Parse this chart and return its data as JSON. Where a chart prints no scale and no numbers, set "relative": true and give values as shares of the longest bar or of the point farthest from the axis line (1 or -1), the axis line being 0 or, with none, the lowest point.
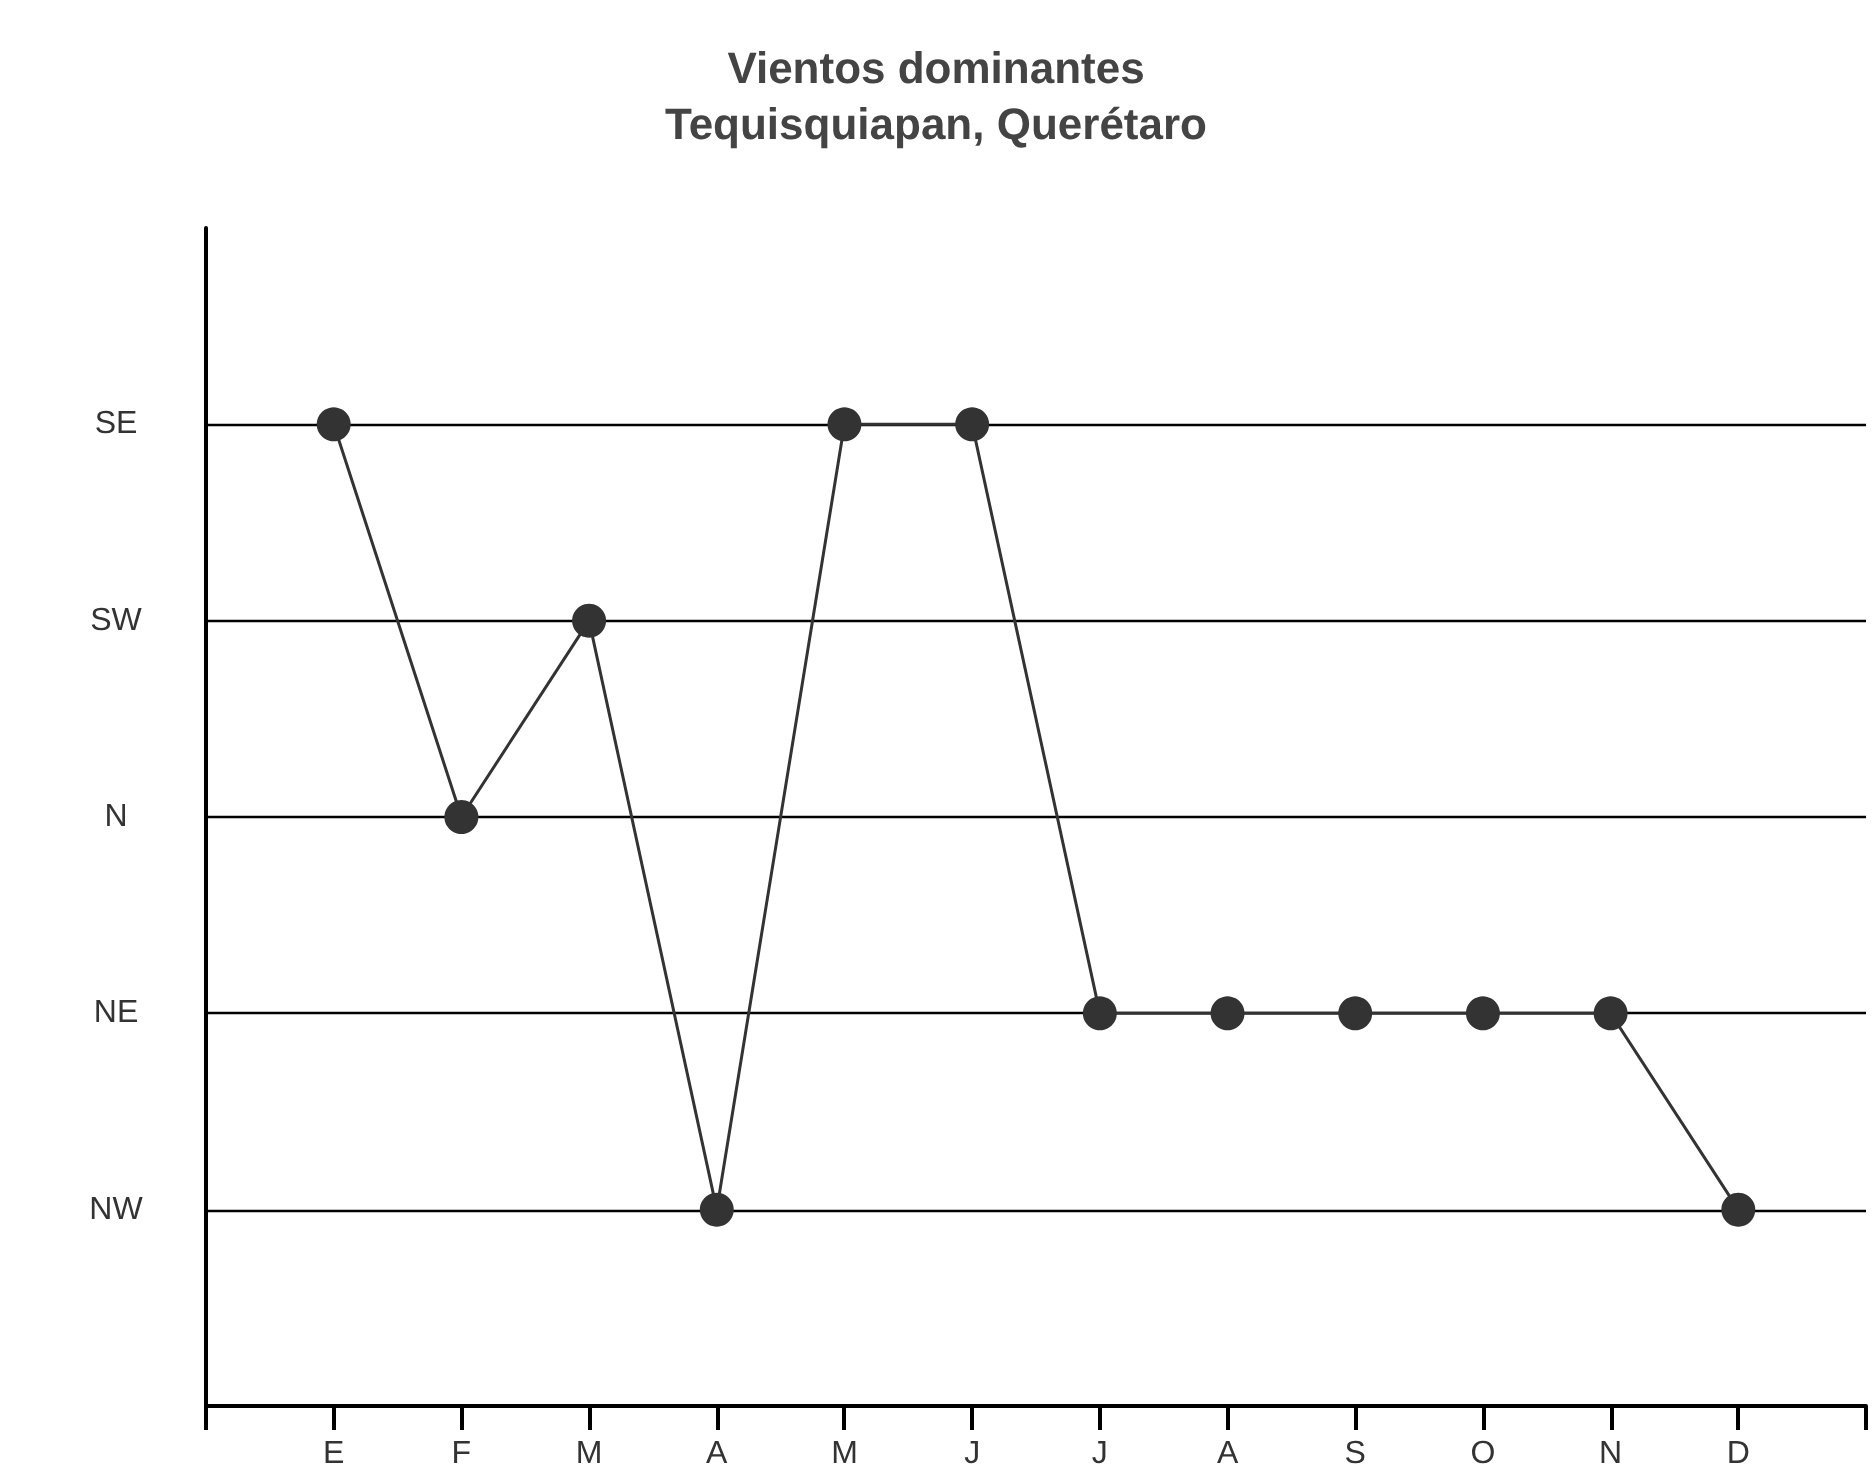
{
  "chart_data": {
    "type": "line",
    "title": "Vientos dominantes",
    "subtitle": "Tequisquiapan, Querétaro",
    "categories": [
      "E",
      "F",
      "M",
      "A",
      "M",
      "J",
      "J",
      "A",
      "S",
      "O",
      "N",
      "D"
    ],
    "y_categories": [
      "SE",
      "SW",
      "N",
      "NE",
      "NW"
    ],
    "relative": true,
    "series": [
      {
        "color": "#333333",
        "values": [
          1,
          0.6,
          0.8,
          0.2,
          1,
          1,
          0.4,
          0.4,
          0.4,
          0.4,
          0.4,
          0.2
        ]
      }
    ],
    "grid": "y",
    "marker": "circle",
    "line_style": "solid"
  }
}
